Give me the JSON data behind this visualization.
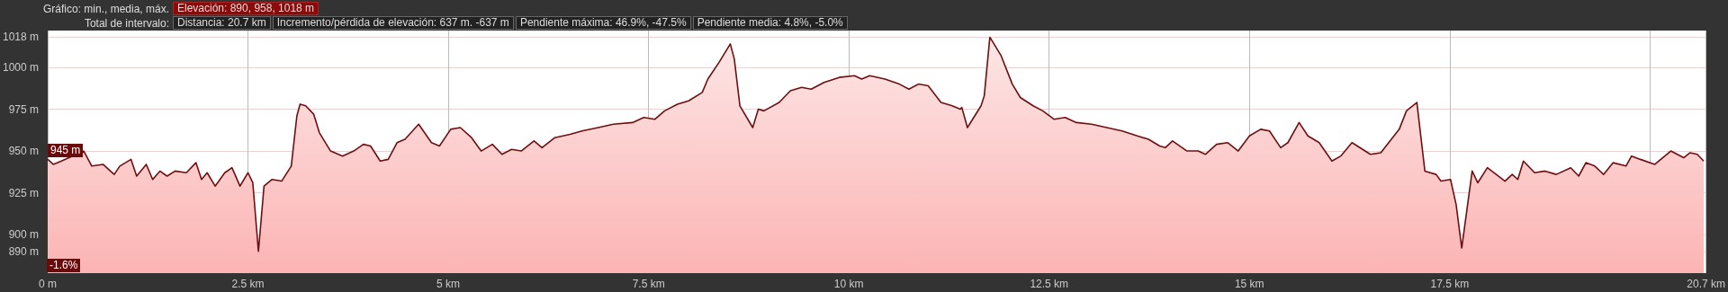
{
  "chart_data": {
    "type": "area",
    "annotations": [
      "Gráfico: min., media, máx.",
      "Elevación: 890, 958, 1018 m",
      "Total de intervalo:",
      "Distancia: 20.7 km",
      "Incremento/pérdida de elevación: 637 m. -637 m",
      "Pendiente máxima: 46.9%, -47.5%",
      "Pendiente media: 4.8%, -5.0%",
      {
        "text": "945 m",
        "x": 0,
        "y": 945
      },
      "-1.6%"
    ],
    "x": [
      0,
      0.07,
      0.17,
      0.31,
      0.4,
      0.45,
      0.55,
      0.69,
      0.83,
      0.9,
      1.04,
      1.11,
      1.23,
      1.31,
      1.4,
      1.49,
      1.59,
      1.73,
      1.85,
      1.92,
      1.99,
      2.09,
      2.21,
      2.3,
      2.4,
      2.5,
      2.56,
      2.63,
      2.7,
      2.8,
      2.92,
      3.04,
      3.11,
      3.15,
      3.22,
      3.32,
      3.39,
      3.53,
      3.68,
      3.82,
      3.94,
      4.03,
      4.15,
      4.25,
      4.36,
      4.46,
      4.63,
      4.79,
      4.89,
      5.03,
      5.15,
      5.29,
      5.41,
      5.55,
      5.67,
      5.79,
      5.91,
      6.07,
      6.17,
      6.33,
      6.52,
      6.67,
      6.87,
      7.06,
      7.3,
      7.44,
      7.58,
      7.7,
      7.86,
      8.0,
      8.17,
      8.24,
      8.38,
      8.52,
      8.57,
      8.64,
      8.8,
      8.87,
      8.94,
      9.13,
      9.27,
      9.41,
      9.53,
      9.69,
      9.88,
      10.07,
      10.16,
      10.26,
      10.45,
      10.63,
      10.75,
      10.87,
      10.99,
      11.15,
      11.29,
      11.39,
      11.41,
      11.48,
      11.65,
      11.69,
      11.76,
      11.9,
      12.04,
      12.14,
      12.3,
      12.42,
      12.56,
      12.7,
      12.84,
      13.03,
      13.22,
      13.41,
      13.6,
      13.74,
      13.88,
      13.95,
      14.04,
      14.22,
      14.36,
      14.45,
      14.59,
      14.73,
      14.86,
      15.0,
      15.14,
      15.25,
      15.39,
      15.48,
      15.62,
      15.73,
      15.87,
      16.03,
      16.14,
      16.28,
      16.51,
      16.64,
      16.87,
      16.96,
      17.09,
      17.19,
      17.33,
      17.39,
      17.51,
      17.58,
      17.65,
      17.78,
      17.85,
      17.97,
      18.08,
      18.19,
      18.28,
      18.35,
      18.42,
      18.56,
      18.69,
      18.83,
      19.01,
      19.11,
      19.2,
      19.31,
      19.42,
      19.54,
      19.7,
      19.77,
      19.88,
      20.06,
      20.26,
      20.42,
      20.5,
      20.59,
      20.67
    ],
    "series": [
      {
        "color": "#6b1010",
        "values": [
          945,
          942,
          944,
          947,
          947,
          950,
          941,
          942,
          936,
          941,
          945,
          935,
          942,
          933,
          938,
          935,
          938,
          937,
          943,
          933,
          937,
          929,
          937,
          940,
          929,
          937,
          931,
          890,
          929,
          933,
          932,
          941,
          971,
          978,
          977,
          972,
          961,
          950,
          947,
          950,
          954,
          953,
          944,
          945,
          955,
          957,
          966,
          955,
          953,
          963,
          964,
          958,
          950,
          954,
          948,
          951,
          950,
          956,
          952,
          958,
          960,
          962,
          964,
          966,
          967,
          970,
          969,
          974,
          978,
          980,
          985,
          993,
          1003,
          1014,
          1005,
          977,
          964,
          975,
          974,
          979,
          986,
          988,
          987,
          991,
          994,
          995,
          993,
          995,
          993,
          990,
          987,
          990,
          989,
          979,
          977,
          975,
          976,
          964,
          977,
          983,
          1018,
          1007,
          990,
          982,
          977,
          974,
          969,
          970,
          967,
          966,
          964,
          962,
          959,
          957,
          953,
          952,
          956,
          950,
          950,
          948,
          954,
          955,
          950,
          959,
          963,
          962,
          952,
          955,
          967,
          959,
          955,
          944,
          947,
          955,
          948,
          949,
          963,
          974,
          979,
          938,
          936,
          932,
          933,
          918,
          892,
          938,
          931,
          940,
          936,
          932,
          936,
          933,
          944,
          937,
          938,
          936,
          940,
          935,
          943,
          941,
          936,
          943,
          941,
          947,
          945,
          942,
          950,
          946,
          949,
          948,
          944
        ]
      }
    ],
    "xlim": [
      0,
      20.7
    ],
    "xticks": [
      {
        "value": 0,
        "label": "0 m"
      },
      {
        "value": 2.5,
        "label": "2.5 km"
      },
      {
        "value": 5,
        "label": "5 km"
      },
      {
        "value": 7.5,
        "label": "7.5 km"
      },
      {
        "value": 10,
        "label": "10 km"
      },
      {
        "value": 12.5,
        "label": "12.5 km"
      },
      {
        "value": 15,
        "label": "15 km"
      },
      {
        "value": 17.5,
        "label": "17.5 km"
      },
      {
        "value": 20,
        "label": null
      },
      {
        "value": 20.7,
        "label": "20.7 km"
      }
    ],
    "ylim": [
      877,
      1022
    ],
    "yticks": [
      {
        "value": 890,
        "label": "890 m"
      },
      {
        "value": 900,
        "label": "900 m"
      },
      {
        "value": 925,
        "label": "925 m"
      },
      {
        "value": 950,
        "label": "950 m"
      },
      {
        "value": 975,
        "label": "975 m"
      },
      {
        "value": 1000,
        "label": "1000 m"
      },
      {
        "value": 1018,
        "label": "1018 m"
      }
    ],
    "grid": true,
    "marker": "none",
    "line_style": "solid"
  }
}
